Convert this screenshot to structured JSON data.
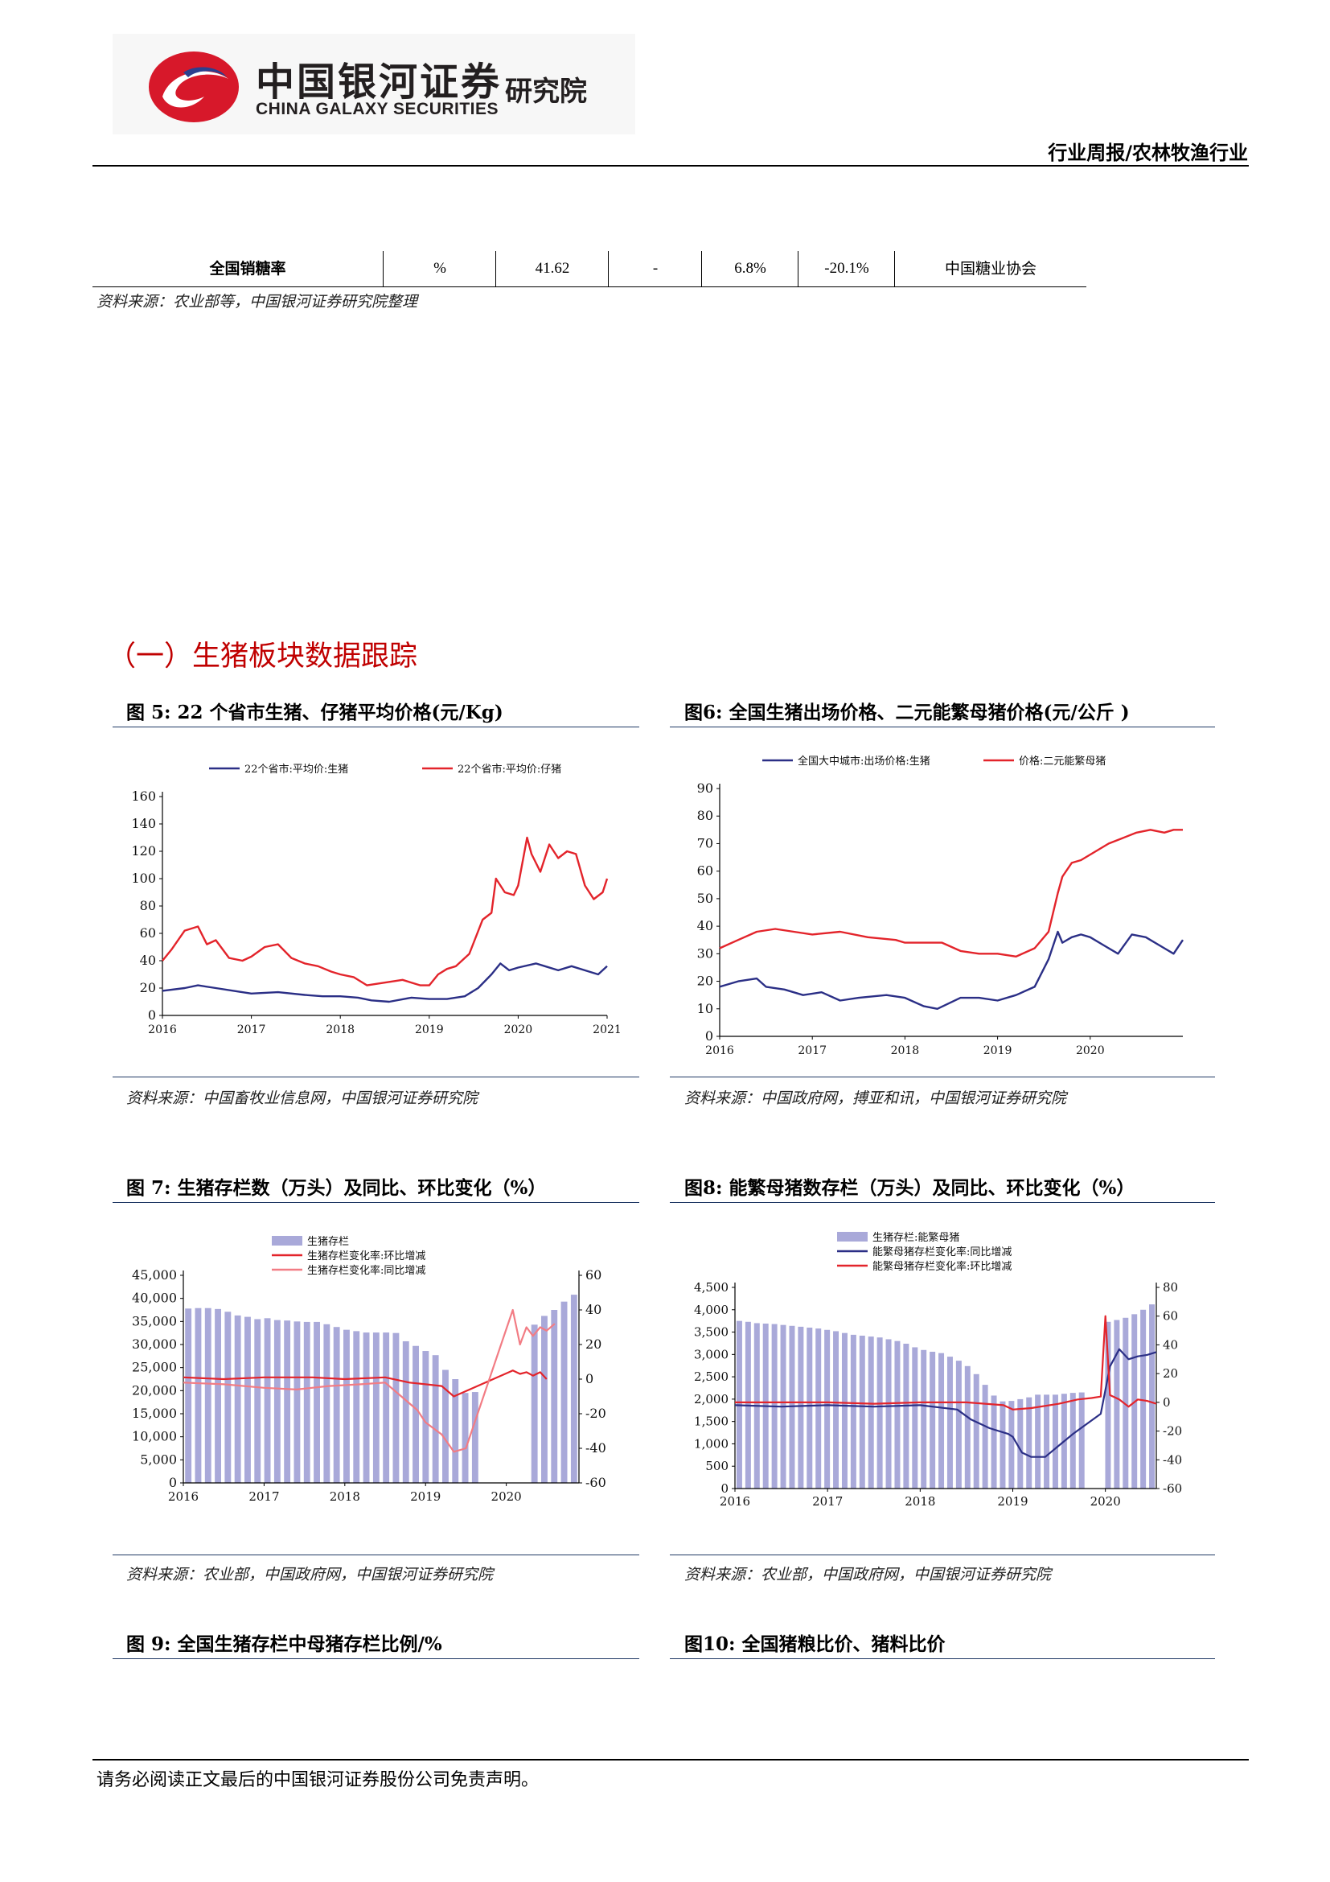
{
  "header": {
    "logo_cn": "中国银河证券",
    "logo_en": "CHINA GALAXY SECURITIES",
    "logo_inst": "研究院",
    "category": "行业周报/农林牧渔行业"
  },
  "table": {
    "cells": [
      "全国销糖率",
      "%",
      "41.62",
      "-",
      "6.8%",
      "-20.1%",
      "中国糖业协会"
    ]
  },
  "table_source": "资料来源：农业部等，中国银河证券研究院整理",
  "section_title": "（一）生猪板块数据跟踪",
  "figures": {
    "fig5_title": "图 5:  22 个省市生猪、仔猪平均价格(元/Kg)",
    "fig6_title": "图6:  全国生猪出场价格、二元能繁母猪价格(元/公斤 )",
    "fig7_title": "图 7:  生猪存栏数（万头）及同比、环比变化（%）",
    "fig8_title": "图8:  能繁母猪数存栏（万头）及同比、环比变化（%）",
    "fig9_title": "图 9:  全国生猪存栏中母猪存栏比例/%",
    "fig10_title": "图10:  全国猪粮比价、猪料比价",
    "fig5_source": "资料来源：中国畜牧业信息网，中国银河证券研究院",
    "fig6_source": "资料来源：中国政府网，搏亚和讯，中国银河证券研究院",
    "fig7_source": "资料来源：农业部，中国政府网，中国银河证券研究院",
    "fig8_source": "资料来源：农业部，中国政府网，中国银河证券研究院"
  },
  "footer": "请务必阅读正文最后的中国银河证券股份公司免责声明。",
  "colors": {
    "red": "#e3242b",
    "navy": "#2b2f86",
    "pink": "#f27c84",
    "bar": "#a9a9d9",
    "section": "#c00000"
  },
  "chart_data": [
    {
      "id": "fig5",
      "type": "line",
      "ylim": [
        0,
        160
      ],
      "yticks": [
        "0",
        "20",
        "40",
        "60",
        "80",
        "100",
        "120",
        "140",
        "160"
      ],
      "xlim": [
        2016,
        2021
      ],
      "xticks": [
        "2016",
        "2017",
        "2018",
        "2019",
        "2020",
        "2021"
      ],
      "series": [
        {
          "name": "22个省市:平均价:生猪",
          "color": "#2b2f86",
          "x": [
            2016,
            2016.25,
            2016.4,
            2016.6,
            2016.8,
            2017,
            2017.3,
            2017.6,
            2017.8,
            2018,
            2018.2,
            2018.35,
            2018.55,
            2018.8,
            2019,
            2019.2,
            2019.4,
            2019.55,
            2019.7,
            2019.8,
            2019.9,
            2020,
            2020.2,
            2020.3,
            2020.45,
            2020.6,
            2020.8,
            2020.9,
            2021
          ],
          "y": [
            18,
            20,
            22,
            20,
            18,
            16,
            17,
            15,
            14,
            14,
            13,
            11,
            10,
            13,
            12,
            12,
            14,
            20,
            30,
            38,
            33,
            35,
            38,
            36,
            33,
            36,
            32,
            30,
            36
          ]
        },
        {
          "name": "22个省市:平均价:仔猪",
          "color": "#e3242b",
          "x": [
            2016,
            2016.1,
            2016.25,
            2016.4,
            2016.5,
            2016.6,
            2016.75,
            2016.9,
            2017,
            2017.15,
            2017.3,
            2017.45,
            2017.6,
            2017.75,
            2017.9,
            2018,
            2018.15,
            2018.3,
            2018.5,
            2018.7,
            2018.9,
            2019,
            2019.1,
            2019.2,
            2019.3,
            2019.45,
            2019.6,
            2019.7,
            2019.75,
            2019.85,
            2019.95,
            2020,
            2020.1,
            2020.15,
            2020.25,
            2020.35,
            2020.45,
            2020.55,
            2020.65,
            2020.75,
            2020.85,
            2020.95,
            2021
          ],
          "y": [
            40,
            48,
            62,
            65,
            52,
            55,
            42,
            40,
            43,
            50,
            52,
            42,
            38,
            36,
            32,
            30,
            28,
            22,
            24,
            26,
            22,
            22,
            30,
            34,
            36,
            45,
            70,
            75,
            100,
            90,
            88,
            95,
            130,
            118,
            105,
            125,
            115,
            120,
            118,
            95,
            85,
            90,
            100
          ]
        }
      ]
    },
    {
      "id": "fig6",
      "type": "line",
      "ylim": [
        0,
        90
      ],
      "yticks": [
        "0",
        "10",
        "20",
        "30",
        "40",
        "50",
        "60",
        "70",
        "80",
        "90"
      ],
      "xlim": [
        2016,
        2021
      ],
      "xticks": [
        "2016",
        "2017",
        "2018",
        "2019",
        "2020"
      ],
      "series": [
        {
          "name": "全国大中城市:出场价格:生猪",
          "color": "#2b2f86",
          "x": [
            2016,
            2016.2,
            2016.4,
            2016.5,
            2016.7,
            2016.9,
            2017.1,
            2017.3,
            2017.5,
            2017.8,
            2018,
            2018.2,
            2018.35,
            2018.6,
            2018.8,
            2019,
            2019.2,
            2019.4,
            2019.55,
            2019.65,
            2019.7,
            2019.8,
            2019.9,
            2020,
            2020.15,
            2020.3,
            2020.45,
            2020.6,
            2020.8,
            2020.9,
            2021
          ],
          "y": [
            18,
            20,
            21,
            18,
            17,
            15,
            16,
            13,
            14,
            15,
            14,
            11,
            10,
            14,
            14,
            13,
            15,
            18,
            28,
            38,
            34,
            36,
            37,
            36,
            33,
            30,
            37,
            36,
            32,
            30,
            35
          ]
        },
        {
          "name": "价格:二元能繁母猪",
          "color": "#e3242b",
          "x": [
            2016,
            2016.2,
            2016.4,
            2016.6,
            2016.8,
            2017,
            2017.3,
            2017.6,
            2017.9,
            2018,
            2018.2,
            2018.4,
            2018.6,
            2018.8,
            2019,
            2019.2,
            2019.4,
            2019.55,
            2019.65,
            2019.7,
            2019.8,
            2019.9,
            2020,
            2020.2,
            2020.35,
            2020.5,
            2020.65,
            2020.8,
            2020.9,
            2021
          ],
          "y": [
            32,
            35,
            38,
            39,
            38,
            37,
            38,
            36,
            35,
            34,
            34,
            34,
            31,
            30,
            30,
            29,
            32,
            38,
            52,
            58,
            63,
            64,
            66,
            70,
            72,
            74,
            75,
            74,
            75,
            75
          ]
        }
      ]
    },
    {
      "id": "fig7",
      "type": "bar+line",
      "ylim": [
        0,
        45000
      ],
      "yticks": [
        "0",
        "5,000",
        "10,000",
        "15,000",
        "20,000",
        "25,000",
        "30,000",
        "35,000",
        "40,000",
        "45,000"
      ],
      "y2lim": [
        -60,
        60
      ],
      "y2ticks": [
        "-60",
        "-40",
        "-20",
        "0",
        "20",
        "40",
        "60"
      ],
      "xlim": [
        2016,
        2020.9
      ],
      "xticks": [
        "2016",
        "2017",
        "2018",
        "2019",
        "2020"
      ],
      "series": [
        {
          "name": "生猪存栏",
          "kind": "bar",
          "color": "#a9a9d9",
          "values": [
            37800,
            37900,
            37900,
            37700,
            37100,
            36300,
            36000,
            35500,
            35700,
            35300,
            35200,
            35000,
            34900,
            34900,
            34400,
            33800,
            33200,
            32900,
            32600,
            32600,
            32600,
            32500,
            30700,
            29700,
            28600,
            27700,
            24500,
            22500,
            19500,
            19700,
            34300,
            36200,
            37500,
            39300,
            40800
          ]
        },
        {
          "name": "生猪存栏变化率:环比增减",
          "kind": "line",
          "axis": "right",
          "color": "#e3242b",
          "x": [
            2016,
            2016.5,
            2017,
            2017.3,
            2017.6,
            2018,
            2018.5,
            2018.8,
            2019,
            2019.2,
            2019.35,
            2020.08,
            2020.17,
            2020.25,
            2020.33,
            2020.42,
            2020.5
          ],
          "y": [
            1,
            0,
            1,
            1,
            1,
            0,
            1,
            -2,
            -3,
            -4,
            -10,
            5,
            3,
            4,
            2,
            4,
            0
          ]
        },
        {
          "name": "生猪存栏变化率:同比增减",
          "kind": "line",
          "axis": "right",
          "color": "#f27c84",
          "x": [
            2016,
            2016.5,
            2017,
            2017.4,
            2017.8,
            2018.2,
            2018.5,
            2018.7,
            2018.9,
            2019,
            2019.2,
            2019.35,
            2019.5,
            2020.08,
            2020.17,
            2020.25,
            2020.33,
            2020.42,
            2020.5,
            2020.6
          ],
          "y": [
            -2,
            -3,
            -5,
            -6,
            -4,
            -3,
            -2,
            -10,
            -18,
            -25,
            -32,
            -42,
            -40,
            40,
            20,
            30,
            25,
            30,
            28,
            32
          ]
        }
      ]
    },
    {
      "id": "fig8",
      "type": "bar+line",
      "ylim": [
        0,
        4500
      ],
      "yticks": [
        "0",
        "500",
        "1,000",
        "1,500",
        "2,000",
        "2,500",
        "3,000",
        "3,500",
        "4,000",
        "4,500"
      ],
      "y2lim": [
        -60,
        80
      ],
      "y2ticks": [
        "-60",
        "-40",
        "-20",
        "0",
        "20",
        "40",
        "60",
        "80"
      ],
      "xlim": [
        2016,
        2020.55
      ],
      "xticks": [
        "2016",
        "2017",
        "2018",
        "2019",
        "2020"
      ],
      "series": [
        {
          "name": "生猪存栏:能繁母猪",
          "kind": "bar",
          "color": "#a9a9d9",
          "values": [
            3750,
            3730,
            3700,
            3690,
            3680,
            3660,
            3640,
            3620,
            3600,
            3580,
            3550,
            3520,
            3480,
            3440,
            3420,
            3400,
            3380,
            3340,
            3300,
            3240,
            3160,
            3100,
            3060,
            3030,
            2950,
            2860,
            2740,
            2560,
            2320,
            2080,
            1950,
            1960,
            2000,
            2040,
            2100,
            2100,
            2100,
            2120,
            2140,
            2150,
            3730,
            3770,
            3820,
            3900,
            4000,
            4120
          ]
        },
        {
          "name": "能繁母猪存栏变化率:同比增减",
          "kind": "line",
          "axis": "right",
          "color": "#2b2f86",
          "x": [
            2016,
            2016.5,
            2017,
            2017.5,
            2018,
            2018.4,
            2018.55,
            2018.75,
            2018.95,
            2019,
            2019.1,
            2019.2,
            2019.35,
            2019.5,
            2019.65,
            2019.8,
            2019.95,
            2020.05,
            2020.15,
            2020.25,
            2020.35,
            2020.45,
            2020.55
          ],
          "y": [
            -2,
            -3,
            -2,
            -3,
            -2,
            -5,
            -12,
            -18,
            -22,
            -24,
            -35,
            -38,
            -38,
            -30,
            -22,
            -15,
            -8,
            25,
            37,
            30,
            32,
            33,
            35
          ]
        },
        {
          "name": "能繁母猪存栏变化率:环比增减",
          "kind": "line",
          "axis": "right",
          "color": "#e3242b",
          "x": [
            2016,
            2016.5,
            2017,
            2017.5,
            2018,
            2018.5,
            2018.9,
            2019,
            2019.2,
            2019.5,
            2019.7,
            2019.85,
            2019.95,
            2020,
            2020.05,
            2020.15,
            2020.25,
            2020.35,
            2020.45,
            2020.55
          ],
          "y": [
            0,
            0,
            0,
            -1,
            0,
            0,
            -2,
            -5,
            -4,
            -1,
            2,
            3,
            4,
            60,
            5,
            2,
            -3,
            2,
            1,
            -1
          ]
        }
      ]
    }
  ]
}
